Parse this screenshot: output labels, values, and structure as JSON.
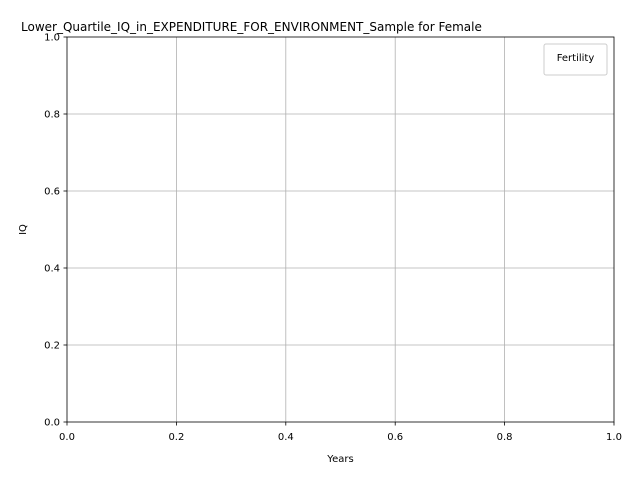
{
  "chart_data": {
    "type": "line",
    "title": "Lower_Quartile_IQ_in_EXPENDITURE_FOR_ENVIRONMENT_Sample for Female",
    "xlabel": "Years",
    "ylabel": "IQ",
    "xlim": [
      0,
      1
    ],
    "ylim": [
      0,
      1
    ],
    "x_ticks": [
      "0.0",
      "0.2",
      "0.4",
      "0.6",
      "0.8",
      "1.0"
    ],
    "y_ticks": [
      "0.0",
      "0.2",
      "0.4",
      "0.6",
      "0.8",
      "1.0"
    ],
    "grid": true,
    "legend": {
      "title": "Fertility",
      "placement": "top-right",
      "entries": []
    },
    "series": []
  }
}
